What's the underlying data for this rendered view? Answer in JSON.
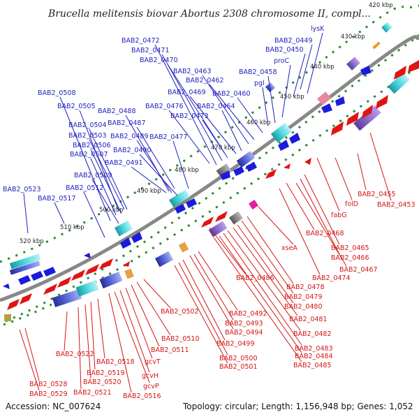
{
  "title": "Brucella melitensis biovar Abortus 2308 chromosome II, compl...",
  "footer": {
    "accession": "Accession: NC_007624",
    "stats": "Topology: circular; Length: 1,156,948 bp; Genes: 1,052"
  },
  "colors": {
    "backbone": "#808080",
    "forward": "#1b1bdc",
    "reverse": "#e01414",
    "tick": "#2b8a2b",
    "blue_label": "#1f1fbf",
    "red_label": "#d41515"
  },
  "kbp_labels": [
    "420 kbp",
    "430 kbp",
    "440 kbp",
    "450 kbp",
    "460 kbp",
    "470 kbp",
    "480 kbp",
    "490 kbp",
    "500 kbp",
    "510 kbp",
    "520 kbp"
  ],
  "blue_labels": [
    "lysK",
    "BAB2_0449",
    "BAB2_0450",
    "proC",
    "BAB2_0458",
    "pgl",
    "BAB2_0460",
    "BAB2_0462",
    "BAB2_0463",
    "BAB2_0464",
    "BAB2_0469",
    "BAB2_0470",
    "BAB2_0471",
    "BAB2_0472",
    "BAB2_0473",
    "BAB2_0476",
    "BAB2_0477",
    "BAB2_0487",
    "BAB2_0488",
    "BAB2_0489",
    "BAB2_0490",
    "BAB2_0491",
    "BAB2_0503",
    "BAB2_0504",
    "BAB2_0505",
    "BAB2_0506",
    "BAB2_0507",
    "BAB2_0508",
    "BAB2_0509",
    "BAB2_0512",
    "BAB2_0517",
    "BAB2_0523"
  ],
  "red_labels": [
    "BAB2_0453",
    "BAB2_0455",
    "folD",
    "fabG",
    "BAB2_0465",
    "BAB2_0466",
    "BAB2_0467",
    "BAB2_0468",
    "BAB2_0474",
    "xseA",
    "BAB2_0478",
    "BAB2_0479",
    "BAB2_0480",
    "BAB2_0481",
    "BAB2_0482",
    "BAB2_0483",
    "BAB2_0484",
    "BAB2_0485",
    "BAB2_0486",
    "BAB2_0492",
    "BAB2_0493",
    "BAB2_0494",
    "BAB2_0499",
    "BAB2_0500",
    "BAB2_0501",
    "BAB2_0502",
    "BAB2_0510",
    "BAB2_0511",
    "gcvT",
    "gcvH",
    "gcvP",
    "BAB2_0516",
    "BAB2_0518",
    "BAB2_0519",
    "BAB2_0520",
    "BAB2_0521",
    "BAB2_0522",
    "BAB2_0528",
    "BAB2_0529"
  ]
}
